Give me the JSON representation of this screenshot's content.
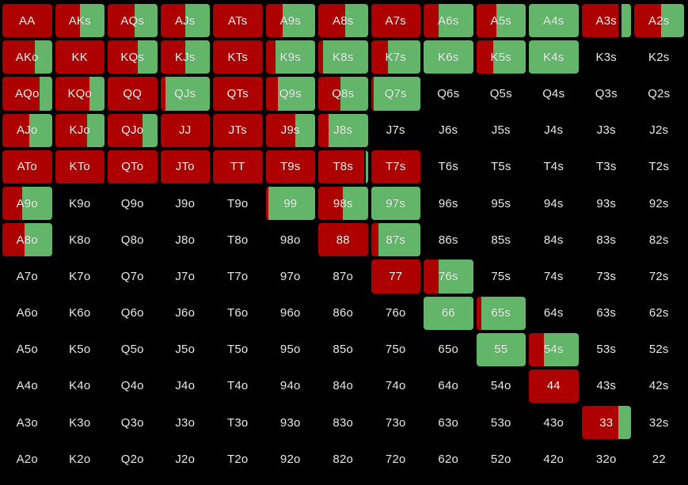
{
  "colors": {
    "raise": "#ad0000",
    "call": "#62b569",
    "background": "#000000"
  },
  "cells": [
    {
      "label": "AA",
      "raise": 1,
      "call": 0
    },
    {
      "label": "AKs",
      "raise": 0.5,
      "call": 0.5
    },
    {
      "label": "AQs",
      "raise": 0.55,
      "call": 0.45
    },
    {
      "label": "AJs",
      "raise": 0.5,
      "call": 0.5
    },
    {
      "label": "ATs",
      "raise": 1,
      "call": 0
    },
    {
      "label": "A9s",
      "raise": 0.35,
      "call": 0.65
    },
    {
      "label": "A8s",
      "raise": 0.55,
      "call": 0.45
    },
    {
      "label": "A7s",
      "raise": 1,
      "call": 0
    },
    {
      "label": "A6s",
      "raise": 0.3,
      "call": 0.7
    },
    {
      "label": "A5s",
      "raise": 0.4,
      "call": 0.6
    },
    {
      "label": "A4s",
      "raise": 0,
      "call": 1
    },
    {
      "label": "A3s",
      "raise": 0.75,
      "call": 0.2
    },
    {
      "label": "A2s",
      "raise": 0.55,
      "call": 0.45
    },
    {
      "label": "AKo",
      "raise": 0.65,
      "call": 0.35
    },
    {
      "label": "KK",
      "raise": 1,
      "call": 0
    },
    {
      "label": "KQs",
      "raise": 0.6,
      "call": 0.4
    },
    {
      "label": "KJs",
      "raise": 0.5,
      "call": 0.5
    },
    {
      "label": "KTs",
      "raise": 1,
      "call": 0
    },
    {
      "label": "K9s",
      "raise": 0.2,
      "call": 0.8
    },
    {
      "label": "K8s",
      "raise": 0.1,
      "call": 0.9
    },
    {
      "label": "K7s",
      "raise": 0.35,
      "call": 0.65
    },
    {
      "label": "K6s",
      "raise": 0,
      "call": 1
    },
    {
      "label": "K5s",
      "raise": 0.35,
      "call": 0.65
    },
    {
      "label": "K4s",
      "raise": 0,
      "call": 1
    },
    {
      "label": "K3s",
      "raise": 0,
      "call": 0
    },
    {
      "label": "K2s",
      "raise": 0,
      "call": 0
    },
    {
      "label": "AQo",
      "raise": 0.75,
      "call": 0.25
    },
    {
      "label": "KQo",
      "raise": 0.7,
      "call": 0.3
    },
    {
      "label": "QQ",
      "raise": 1,
      "call": 0
    },
    {
      "label": "QJs",
      "raise": 0.1,
      "call": 0.9
    },
    {
      "label": "QTs",
      "raise": 1,
      "call": 0
    },
    {
      "label": "Q9s",
      "raise": 0.25,
      "call": 0.75
    },
    {
      "label": "Q8s",
      "raise": 0.45,
      "call": 0.55
    },
    {
      "label": "Q7s",
      "raise": 0.05,
      "call": 0.95
    },
    {
      "label": "Q6s",
      "raise": 0,
      "call": 0
    },
    {
      "label": "Q5s",
      "raise": 0,
      "call": 0
    },
    {
      "label": "Q4s",
      "raise": 0,
      "call": 0
    },
    {
      "label": "Q3s",
      "raise": 0,
      "call": 0
    },
    {
      "label": "Q2s",
      "raise": 0,
      "call": 0
    },
    {
      "label": "AJo",
      "raise": 0.55,
      "call": 0.45
    },
    {
      "label": "KJo",
      "raise": 0.65,
      "call": 0.35
    },
    {
      "label": "QJo",
      "raise": 0.7,
      "call": 0.3
    },
    {
      "label": "JJ",
      "raise": 1,
      "call": 0
    },
    {
      "label": "JTs",
      "raise": 1,
      "call": 0
    },
    {
      "label": "J9s",
      "raise": 0.6,
      "call": 0.4
    },
    {
      "label": "J8s",
      "raise": 0.2,
      "call": 0.8
    },
    {
      "label": "J7s",
      "raise": 0,
      "call": 0
    },
    {
      "label": "J6s",
      "raise": 0,
      "call": 0
    },
    {
      "label": "J5s",
      "raise": 0,
      "call": 0
    },
    {
      "label": "J4s",
      "raise": 0,
      "call": 0
    },
    {
      "label": "J3s",
      "raise": 0,
      "call": 0
    },
    {
      "label": "J2s",
      "raise": 0,
      "call": 0
    },
    {
      "label": "ATo",
      "raise": 1,
      "call": 0
    },
    {
      "label": "KTo",
      "raise": 1,
      "call": 0
    },
    {
      "label": "QTo",
      "raise": 1,
      "call": 0
    },
    {
      "label": "JTo",
      "raise": 1,
      "call": 0
    },
    {
      "label": "TT",
      "raise": 1,
      "call": 0
    },
    {
      "label": "T9s",
      "raise": 1,
      "call": 0
    },
    {
      "label": "T8s",
      "raise": 0.92,
      "call": 0.04
    },
    {
      "label": "T7s",
      "raise": 1,
      "call": 0
    },
    {
      "label": "T6s",
      "raise": 0,
      "call": 0
    },
    {
      "label": "T5s",
      "raise": 0,
      "call": 0
    },
    {
      "label": "T4s",
      "raise": 0,
      "call": 0
    },
    {
      "label": "T3s",
      "raise": 0,
      "call": 0
    },
    {
      "label": "T2s",
      "raise": 0,
      "call": 0
    },
    {
      "label": "A9o",
      "raise": 0.4,
      "call": 0.6
    },
    {
      "label": "K9o",
      "raise": 0,
      "call": 0
    },
    {
      "label": "Q9o",
      "raise": 0,
      "call": 0
    },
    {
      "label": "J9o",
      "raise": 0,
      "call": 0
    },
    {
      "label": "T9o",
      "raise": 0,
      "call": 0
    },
    {
      "label": "99",
      "raise": 0.05,
      "call": 0.95
    },
    {
      "label": "98s",
      "raise": 0.5,
      "call": 0.5
    },
    {
      "label": "97s",
      "raise": 0,
      "call": 1
    },
    {
      "label": "96s",
      "raise": 0,
      "call": 0
    },
    {
      "label": "95s",
      "raise": 0,
      "call": 0
    },
    {
      "label": "94s",
      "raise": 0,
      "call": 0
    },
    {
      "label": "93s",
      "raise": 0,
      "call": 0
    },
    {
      "label": "92s",
      "raise": 0,
      "call": 0
    },
    {
      "label": "A8o",
      "raise": 0.45,
      "call": 0.55
    },
    {
      "label": "K8o",
      "raise": 0,
      "call": 0
    },
    {
      "label": "Q8o",
      "raise": 0,
      "call": 0
    },
    {
      "label": "J8o",
      "raise": 0,
      "call": 0
    },
    {
      "label": "T8o",
      "raise": 0,
      "call": 0
    },
    {
      "label": "98o",
      "raise": 0,
      "call": 0
    },
    {
      "label": "88",
      "raise": 1,
      "call": 0
    },
    {
      "label": "87s",
      "raise": 0.15,
      "call": 0.85
    },
    {
      "label": "86s",
      "raise": 0,
      "call": 0
    },
    {
      "label": "85s",
      "raise": 0,
      "call": 0
    },
    {
      "label": "84s",
      "raise": 0,
      "call": 0
    },
    {
      "label": "83s",
      "raise": 0,
      "call": 0
    },
    {
      "label": "82s",
      "raise": 0,
      "call": 0
    },
    {
      "label": "A7o",
      "raise": 0,
      "call": 0
    },
    {
      "label": "K7o",
      "raise": 0,
      "call": 0
    },
    {
      "label": "Q7o",
      "raise": 0,
      "call": 0
    },
    {
      "label": "J7o",
      "raise": 0,
      "call": 0
    },
    {
      "label": "T7o",
      "raise": 0,
      "call": 0
    },
    {
      "label": "97o",
      "raise": 0,
      "call": 0
    },
    {
      "label": "87o",
      "raise": 0,
      "call": 0
    },
    {
      "label": "77",
      "raise": 1,
      "call": 0
    },
    {
      "label": "76s",
      "raise": 0.3,
      "call": 0.7
    },
    {
      "label": "75s",
      "raise": 0,
      "call": 0
    },
    {
      "label": "74s",
      "raise": 0,
      "call": 0
    },
    {
      "label": "73s",
      "raise": 0,
      "call": 0
    },
    {
      "label": "72s",
      "raise": 0,
      "call": 0
    },
    {
      "label": "A6o",
      "raise": 0,
      "call": 0
    },
    {
      "label": "K6o",
      "raise": 0,
      "call": 0
    },
    {
      "label": "Q6o",
      "raise": 0,
      "call": 0
    },
    {
      "label": "J6o",
      "raise": 0,
      "call": 0
    },
    {
      "label": "T6o",
      "raise": 0,
      "call": 0
    },
    {
      "label": "96o",
      "raise": 0,
      "call": 0
    },
    {
      "label": "86o",
      "raise": 0,
      "call": 0
    },
    {
      "label": "76o",
      "raise": 0,
      "call": 0
    },
    {
      "label": "66",
      "raise": 0,
      "call": 1
    },
    {
      "label": "65s",
      "raise": 0.1,
      "call": 0.9
    },
    {
      "label": "64s",
      "raise": 0,
      "call": 0
    },
    {
      "label": "63s",
      "raise": 0,
      "call": 0
    },
    {
      "label": "62s",
      "raise": 0,
      "call": 0
    },
    {
      "label": "A5o",
      "raise": 0,
      "call": 0
    },
    {
      "label": "K5o",
      "raise": 0,
      "call": 0
    },
    {
      "label": "Q5o",
      "raise": 0,
      "call": 0
    },
    {
      "label": "J5o",
      "raise": 0,
      "call": 0
    },
    {
      "label": "T5o",
      "raise": 0,
      "call": 0
    },
    {
      "label": "95o",
      "raise": 0,
      "call": 0
    },
    {
      "label": "85o",
      "raise": 0,
      "call": 0
    },
    {
      "label": "75o",
      "raise": 0,
      "call": 0
    },
    {
      "label": "65o",
      "raise": 0,
      "call": 0
    },
    {
      "label": "55",
      "raise": 0,
      "call": 1
    },
    {
      "label": "54s",
      "raise": 0.3,
      "call": 0.7
    },
    {
      "label": "53s",
      "raise": 0,
      "call": 0
    },
    {
      "label": "52s",
      "raise": 0,
      "call": 0
    },
    {
      "label": "A4o",
      "raise": 0,
      "call": 0
    },
    {
      "label": "K4o",
      "raise": 0,
      "call": 0
    },
    {
      "label": "Q4o",
      "raise": 0,
      "call": 0
    },
    {
      "label": "J4o",
      "raise": 0,
      "call": 0
    },
    {
      "label": "T4o",
      "raise": 0,
      "call": 0
    },
    {
      "label": "94o",
      "raise": 0,
      "call": 0
    },
    {
      "label": "84o",
      "raise": 0,
      "call": 0
    },
    {
      "label": "74o",
      "raise": 0,
      "call": 0
    },
    {
      "label": "64o",
      "raise": 0,
      "call": 0
    },
    {
      "label": "54o",
      "raise": 0,
      "call": 0
    },
    {
      "label": "44",
      "raise": 1,
      "call": 0
    },
    {
      "label": "43s",
      "raise": 0,
      "call": 0
    },
    {
      "label": "42s",
      "raise": 0,
      "call": 0
    },
    {
      "label": "A3o",
      "raise": 0,
      "call": 0
    },
    {
      "label": "K3o",
      "raise": 0,
      "call": 0
    },
    {
      "label": "Q3o",
      "raise": 0,
      "call": 0
    },
    {
      "label": "J3o",
      "raise": 0,
      "call": 0
    },
    {
      "label": "T3o",
      "raise": 0,
      "call": 0
    },
    {
      "label": "93o",
      "raise": 0,
      "call": 0
    },
    {
      "label": "83o",
      "raise": 0,
      "call": 0
    },
    {
      "label": "73o",
      "raise": 0,
      "call": 0
    },
    {
      "label": "63o",
      "raise": 0,
      "call": 0
    },
    {
      "label": "53o",
      "raise": 0,
      "call": 0
    },
    {
      "label": "43o",
      "raise": 0,
      "call": 0
    },
    {
      "label": "33",
      "raise": 0.75,
      "call": 0.25
    },
    {
      "label": "32s",
      "raise": 0,
      "call": 0
    },
    {
      "label": "A2o",
      "raise": 0,
      "call": 0
    },
    {
      "label": "K2o",
      "raise": 0,
      "call": 0
    },
    {
      "label": "Q2o",
      "raise": 0,
      "call": 0
    },
    {
      "label": "J2o",
      "raise": 0,
      "call": 0
    },
    {
      "label": "T2o",
      "raise": 0,
      "call": 0
    },
    {
      "label": "92o",
      "raise": 0,
      "call": 0
    },
    {
      "label": "82o",
      "raise": 0,
      "call": 0
    },
    {
      "label": "72o",
      "raise": 0,
      "call": 0
    },
    {
      "label": "62o",
      "raise": 0,
      "call": 0
    },
    {
      "label": "52o",
      "raise": 0,
      "call": 0
    },
    {
      "label": "42o",
      "raise": 0,
      "call": 0
    },
    {
      "label": "32o",
      "raise": 0,
      "call": 0
    },
    {
      "label": "22",
      "raise": 0,
      "call": 0
    }
  ]
}
